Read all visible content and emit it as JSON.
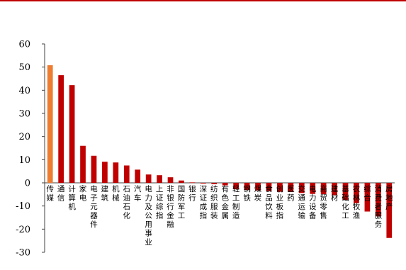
{
  "header": {
    "rule_color": "#c00000"
  },
  "colors": {
    "highlight": "#ed7d31",
    "bar": "#c00000",
    "axis": "#404040",
    "text": "#000000"
  },
  "chart_data": {
    "type": "bar",
    "title": "",
    "xlabel": "",
    "ylabel": "",
    "ylim": [
      -30,
      60
    ],
    "yticks": [
      60,
      50,
      40,
      30,
      20,
      10,
      0,
      -10,
      -20,
      -30
    ],
    "grid": false,
    "legend": "none",
    "highlight_index": 0,
    "categories": [
      "传媒",
      "通信",
      "计算机",
      "家电",
      "电子元器件",
      "建筑",
      "机械",
      "石油石化",
      "汽车",
      "电力及公用事业",
      "上证综指",
      "非银行金融",
      "国防军工",
      "银行",
      "深证成指",
      "纺织服装",
      "有色金属",
      "轻工制造",
      "钢铁",
      "煤炭",
      "食品饮料",
      "创业板指",
      "医药",
      "交通运输",
      "电力设备",
      "商贸零售",
      "建材",
      "基础化工",
      "农林牧渔",
      "综合",
      "消费者服务",
      "房地产"
    ],
    "values": [
      50.8,
      46.5,
      42.2,
      16.0,
      11.7,
      9.1,
      8.8,
      7.5,
      5.7,
      3.6,
      3.3,
      2.4,
      1.0,
      0.2,
      -0.3,
      -0.6,
      -1.1,
      -2.8,
      -3.1,
      -3.3,
      -3.6,
      -3.8,
      -4.0,
      -4.4,
      -4.8,
      -4.9,
      -5.3,
      -7.4,
      -8.8,
      -12.4,
      -14.5,
      -23.8
    ]
  }
}
